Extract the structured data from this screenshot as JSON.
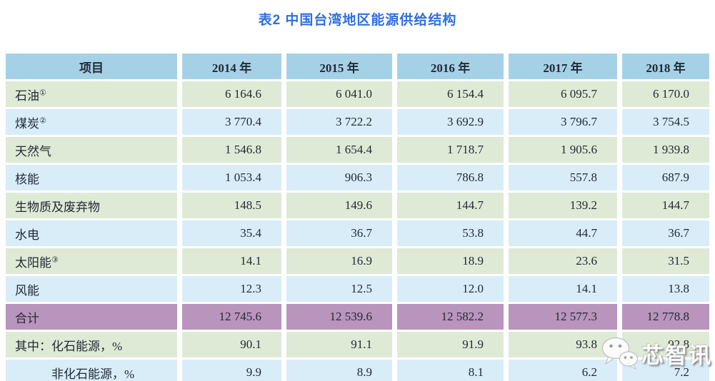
{
  "title": "表2 中国台湾地区能源供给结构",
  "watermark": {
    "text": "芯智讯",
    "icon": "wechat-icon"
  },
  "palette": {
    "title_blue": "#2f6fe0",
    "header_bg": "#a5d1e7",
    "row_green": "#dfead6",
    "row_blue": "#d9edf9",
    "total_purple": "#b994bc",
    "text": "#212b36"
  },
  "chart_data": {
    "type": "table",
    "title": "表2 中国台湾地区能源供给结构",
    "columns": [
      "项目",
      "2014 年",
      "2015 年",
      "2016 年",
      "2017 年",
      "2018 年"
    ],
    "rows": [
      {
        "label": "石油",
        "sup": "①",
        "style": "green",
        "indent": false,
        "values": [
          "6 164.6",
          "6 041.0",
          "6 154.4",
          "6 095.7",
          "6 170.0"
        ]
      },
      {
        "label": "煤炭",
        "sup": "②",
        "style": "blue",
        "indent": false,
        "values": [
          "3 770.4",
          "3 722.2",
          "3 692.9",
          "3 796.7",
          "3 754.5"
        ]
      },
      {
        "label": "天然气",
        "sup": "",
        "style": "green",
        "indent": false,
        "values": [
          "1 546.8",
          "1 654.4",
          "1 718.7",
          "1 905.6",
          "1 939.8"
        ]
      },
      {
        "label": "核能",
        "sup": "",
        "style": "blue",
        "indent": false,
        "values": [
          "1 053.4",
          "906.3",
          "786.8",
          "557.8",
          "687.9"
        ]
      },
      {
        "label": "生物质及废弃物",
        "sup": "",
        "style": "green",
        "indent": false,
        "values": [
          "148.5",
          "149.6",
          "144.7",
          "139.2",
          "144.7"
        ]
      },
      {
        "label": "水电",
        "sup": "",
        "style": "blue",
        "indent": false,
        "values": [
          "35.4",
          "36.7",
          "53.8",
          "44.7",
          "36.7"
        ]
      },
      {
        "label": "太阳能",
        "sup": "③",
        "style": "green",
        "indent": false,
        "values": [
          "14.1",
          "16.9",
          "18.9",
          "23.6",
          "31.5"
        ]
      },
      {
        "label": "风能",
        "sup": "",
        "style": "blue",
        "indent": false,
        "values": [
          "12.3",
          "12.5",
          "12.0",
          "14.1",
          "13.8"
        ]
      },
      {
        "label": "合计",
        "sup": "",
        "style": "total",
        "indent": false,
        "values": [
          "12 745.6",
          "12 539.6",
          "12 582.2",
          "12 577.3",
          "12 778.8"
        ]
      },
      {
        "label": "其中：化石能源，%",
        "sup": "",
        "style": "green",
        "indent": false,
        "values": [
          "90.1",
          "91.1",
          "91.9",
          "93.8",
          "92.8"
        ]
      },
      {
        "label": "非化石能源，%",
        "sup": "",
        "style": "blue",
        "indent": true,
        "values": [
          "9.9",
          "8.9",
          "8.1",
          "6.2",
          "7.2"
        ]
      }
    ]
  }
}
